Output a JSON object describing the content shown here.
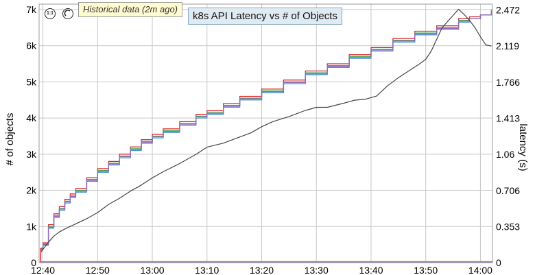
{
  "chart_data": {
    "type": "line",
    "title": "k8s API Latency vs # of Objects",
    "notice": "Historical data (2m ago)",
    "controls": {
      "reset_zoom_label": "1:1"
    },
    "ylabel_left": "# of objects",
    "ylabel_right": "latency (s)",
    "x_ticks": [
      "12:40",
      "12:50",
      "13:00",
      "13:10",
      "13:20",
      "13:30",
      "13:40",
      "13:50",
      "14:00"
    ],
    "y_left_ticks": [
      "0",
      "1k",
      "2k",
      "3k",
      "4k",
      "5k",
      "6k",
      "7k"
    ],
    "y_right_ticks": [
      "0",
      "0.353",
      "0.706",
      "1.06",
      "1.413",
      "1.766",
      "2.119",
      "2.472"
    ],
    "xlim_minutes_after_1240": [
      -0.7,
      82.2
    ],
    "ylim_left": [
      0,
      7150
    ],
    "ylim_right": [
      0,
      2.53
    ],
    "grid": true,
    "colors": {
      "objects_red": "#d62728",
      "objects_green": "#4caf50",
      "objects_blue": "#4a90d9",
      "objects_purple": "#9467bd",
      "latency": "#444444",
      "flat_orange": "#e8a33d",
      "flat_purple": "#8a6fd0"
    },
    "series": [
      {
        "axis": "left",
        "color": "#d62728",
        "x": [
          -0.4,
          0,
          1,
          2,
          3,
          4,
          5,
          6,
          8,
          10,
          12,
          14,
          16,
          18,
          20,
          22,
          25,
          28,
          30,
          33,
          36,
          40,
          44,
          48,
          52,
          56,
          60,
          64,
          68,
          72,
          76,
          78,
          80,
          82
        ],
        "values": [
          400,
          550,
          1050,
          1350,
          1550,
          1750,
          1900,
          2050,
          2350,
          2600,
          2800,
          3000,
          3200,
          3400,
          3550,
          3700,
          3900,
          4100,
          4200,
          4400,
          4600,
          4800,
          5050,
          5300,
          5500,
          5750,
          5950,
          6200,
          6400,
          6550,
          6750,
          6800,
          6850,
          6950
        ]
      },
      {
        "axis": "left",
        "color": "#4caf50",
        "x": [
          -0.4,
          0,
          1,
          2,
          3,
          4,
          5,
          6,
          8,
          10,
          12,
          14,
          16,
          18,
          20,
          22,
          25,
          28,
          30,
          33,
          36,
          40,
          44,
          48,
          52,
          56,
          60,
          64,
          68,
          72,
          76,
          78,
          80,
          82
        ],
        "values": [
          380,
          520,
          1000,
          1300,
          1500,
          1700,
          1850,
          2000,
          2300,
          2550,
          2750,
          2950,
          3150,
          3350,
          3500,
          3650,
          3850,
          4050,
          4150,
          4350,
          4550,
          4750,
          5000,
          5250,
          5450,
          5700,
          5900,
          6150,
          6350,
          6500,
          6700,
          6750,
          6850,
          6950
        ]
      },
      {
        "axis": "left",
        "color": "#4a90d9",
        "x": [
          -0.4,
          0,
          1,
          2,
          3,
          4,
          5,
          6,
          8,
          10,
          12,
          14,
          16,
          18,
          20,
          22,
          25,
          28,
          30,
          33,
          36,
          40,
          44,
          48,
          52,
          56,
          60,
          64,
          68,
          72,
          76,
          78,
          80,
          82
        ],
        "values": [
          350,
          480,
          950,
          1250,
          1450,
          1650,
          1800,
          1950,
          2250,
          2500,
          2700,
          2900,
          3100,
          3300,
          3450,
          3600,
          3800,
          4000,
          4100,
          4300,
          4500,
          4700,
          4950,
          5200,
          5400,
          5650,
          5850,
          6100,
          6300,
          6450,
          6650,
          6750,
          6850,
          7000
        ]
      },
      {
        "axis": "left",
        "color": "#9467bd",
        "x": [
          -0.4,
          0,
          1,
          2,
          3,
          4,
          5,
          6,
          8,
          10,
          12,
          14,
          16,
          18,
          20,
          22,
          25,
          28,
          30,
          33,
          36,
          40,
          44,
          48,
          52,
          56,
          60,
          64,
          68,
          72,
          76,
          78,
          80,
          82
        ],
        "values": [
          370,
          500,
          980,
          1280,
          1480,
          1680,
          1830,
          1980,
          2280,
          2530,
          2730,
          2930,
          3130,
          3330,
          3480,
          3630,
          3830,
          4030,
          4130,
          4330,
          4530,
          4730,
          4980,
          5230,
          5430,
          5680,
          5880,
          6130,
          6330,
          6480,
          6680,
          6750,
          6850,
          6950
        ]
      },
      {
        "axis": "right",
        "color": "#444444",
        "x": [
          -0.4,
          0,
          1,
          2,
          3,
          4,
          6,
          8,
          10,
          12,
          14,
          16,
          18,
          20,
          22,
          25,
          28,
          30,
          33,
          35,
          38,
          40,
          42,
          45,
          48,
          50,
          52,
          55,
          57,
          59,
          61,
          63,
          65,
          67,
          69,
          70,
          71,
          73,
          75,
          76,
          77,
          78,
          79,
          80,
          81,
          82
        ],
        "values": [
          0.1,
          0.13,
          0.2,
          0.26,
          0.3,
          0.33,
          0.38,
          0.43,
          0.49,
          0.57,
          0.63,
          0.7,
          0.76,
          0.83,
          0.89,
          0.97,
          1.06,
          1.13,
          1.17,
          1.21,
          1.27,
          1.33,
          1.38,
          1.43,
          1.49,
          1.52,
          1.52,
          1.56,
          1.59,
          1.6,
          1.63,
          1.73,
          1.81,
          1.88,
          1.95,
          1.99,
          2.07,
          2.3,
          2.42,
          2.48,
          2.43,
          2.37,
          2.3,
          2.21,
          2.13,
          2.12
        ]
      },
      {
        "axis": "left",
        "color": "#e8a33d",
        "x": [
          -0.4,
          82.2
        ],
        "values": [
          30,
          30
        ]
      },
      {
        "axis": "left",
        "color": "#8a6fd0",
        "x": [
          -0.4,
          82.2
        ],
        "values": [
          20,
          20
        ]
      }
    ]
  }
}
